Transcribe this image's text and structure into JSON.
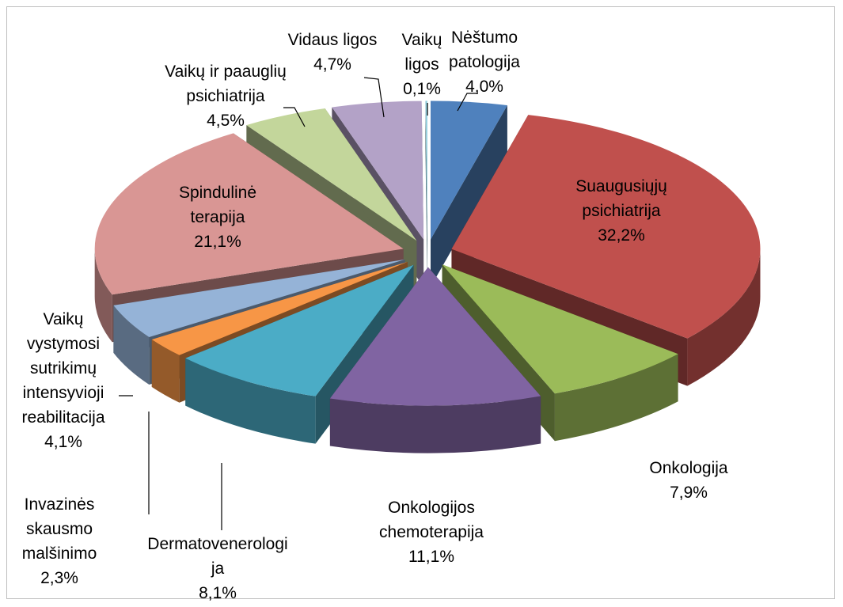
{
  "chart_data": {
    "type": "pie3d",
    "categories": [
      "Nėštumo patologija",
      "Suaugusiųjų psichiatrija",
      "Onkologija",
      "Onkologijos chemoterapija",
      "Dermatovenerologija",
      "Invazinės skausmo malšinimo",
      "Vaikų vystymosi sutrikimų intensyvioji reabilitacija",
      "Spindulinė terapija",
      "Vaikų ir paauglių psichiatrija",
      "Vidaus ligos",
      "Vaikų ligos"
    ],
    "values": [
      4.0,
      32.2,
      7.9,
      11.1,
      8.1,
      2.3,
      4.1,
      21.1,
      4.5,
      4.7,
      0.1
    ],
    "value_labels": [
      "4,0%",
      "32,2%",
      "7,9%",
      "11,1%",
      "8,1%",
      "2,3%",
      "4,1%",
      "21,1%",
      "4,5%",
      "4,7%",
      "0,1%"
    ],
    "colors": [
      "#4f81bd",
      "#c0504d",
      "#9bbb59",
      "#8064a2",
      "#4bacc6",
      "#f79646",
      "#95b3d7",
      "#d99694",
      "#c3d69b",
      "#b3a2c7",
      "#93cddd"
    ]
  }
}
